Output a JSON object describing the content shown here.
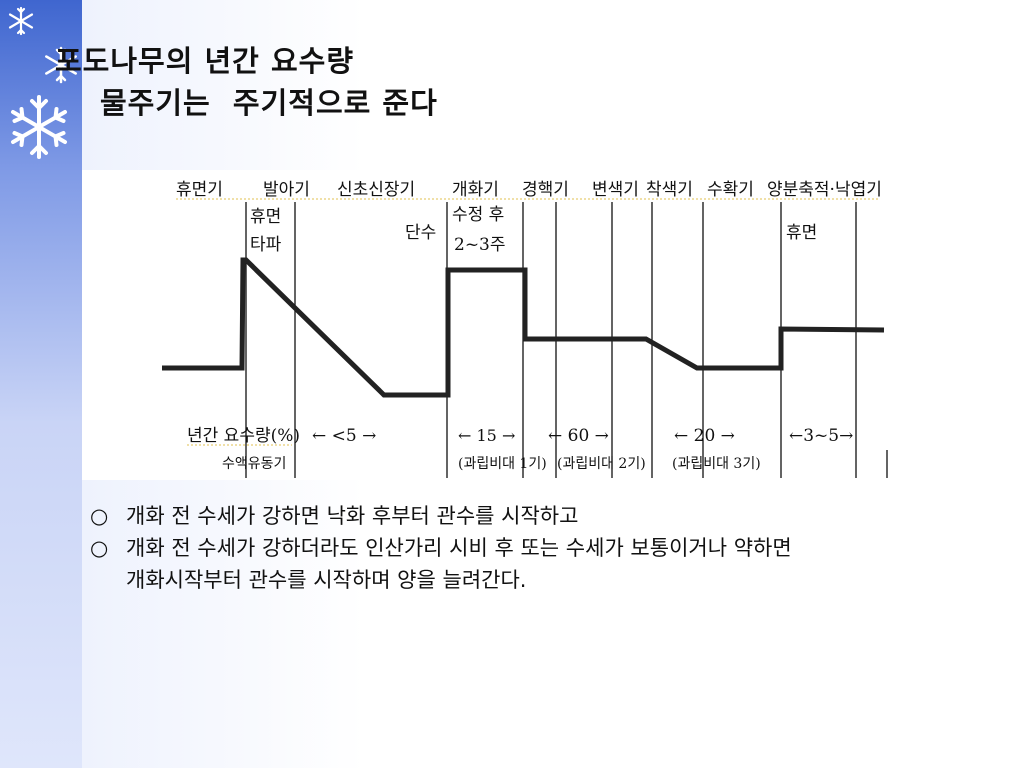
{
  "title": {
    "line1": "포도나무의 년간 요수량",
    "line2": "물주기는  주기적으로 준다"
  },
  "diagram": {
    "stages": [
      "휴면기",
      "발아기",
      "신초신장기",
      "개화기",
      "경핵기",
      "변색기",
      "착색기",
      "수확기",
      "양분축적·낙엽기"
    ],
    "labels": {
      "dormancy_break": [
        "휴면",
        "타파"
      ],
      "cut_water": "단수",
      "after_fruit_set": [
        "수정 후",
        "2~3주"
      ],
      "dormancy": "휴면"
    },
    "annual_water_label": "년간 요수량(%)",
    "sap_label": "수액유동기",
    "values": [
      "← <5 →",
      "← 15 →",
      "← 60 →",
      "← 20 →",
      "←3~5→"
    ],
    "fruit_stages": [
      "(과립비대 1기)",
      "(과립비대 2기)",
      "(과립비대 3기)"
    ]
  },
  "bullets": [
    {
      "mark": "○",
      "text": "개화 전 수세가 강하면 낙화 후부터 관수를 시작하고"
    },
    {
      "mark": "○",
      "text": "개화 전 수세가 강하더라도 인산가리 시비 후 또는 수세가 보통이거나 약하면",
      "cont": "개화시작부터 관수를 시작하며 양을 늘려간다."
    }
  ],
  "colors": {
    "sidebar_top": "#3f66cf",
    "sidebar_bottom": "#dfe6fb",
    "line": "#222222"
  },
  "icons": [
    "snowflake-icon"
  ]
}
